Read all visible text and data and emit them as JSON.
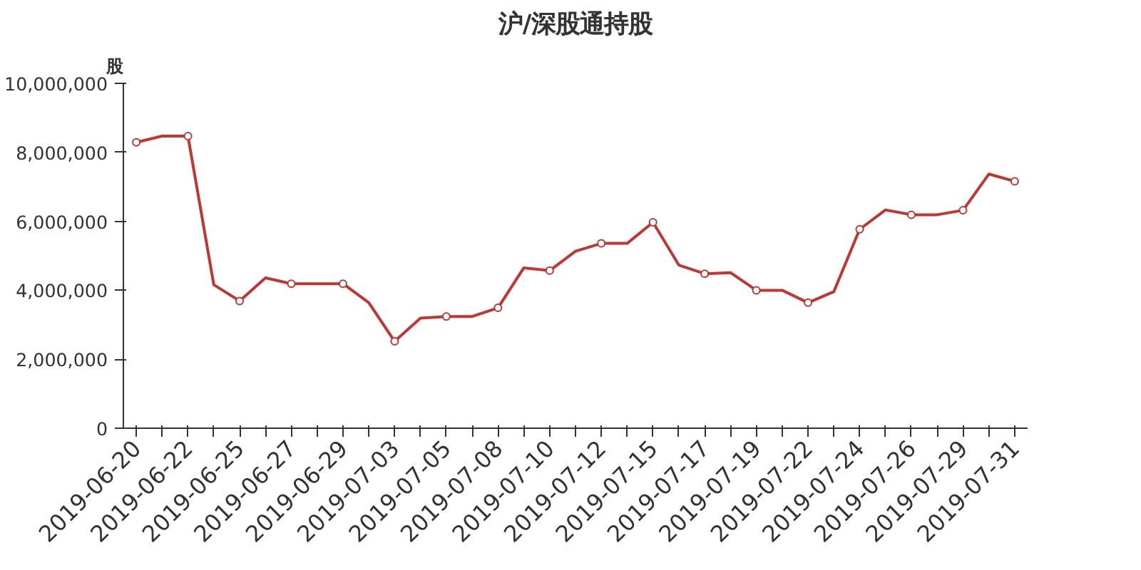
{
  "chart_data": {
    "type": "line",
    "title": "沪/深股通持股",
    "ylabel": "股",
    "categories": [
      "2019-06-20",
      null,
      "2019-06-22",
      null,
      "2019-06-25",
      null,
      "2019-06-27",
      null,
      "2019-06-29",
      null,
      "2019-07-03",
      null,
      "2019-07-05",
      null,
      "2019-07-08",
      null,
      "2019-07-10",
      null,
      "2019-07-12",
      null,
      "2019-07-15",
      null,
      "2019-07-17",
      null,
      "2019-07-19",
      null,
      "2019-07-22",
      null,
      "2019-07-24",
      null,
      "2019-07-26",
      null,
      "2019-07-29",
      null,
      "2019-07-31"
    ],
    "series": [
      {
        "color": "#c23531",
        "values": [
          8290000,
          8470000,
          8470000,
          4160000,
          3690000,
          4360000,
          4190000,
          4190000,
          4190000,
          3640000,
          2520000,
          3190000,
          3240000,
          3240000,
          3490000,
          4650000,
          4570000,
          5130000,
          5360000,
          5360000,
          5970000,
          4730000,
          4480000,
          4510000,
          4000000,
          4000000,
          3640000,
          3960000,
          5770000,
          6330000,
          6190000,
          6190000,
          6320000,
          7370000,
          7160000
        ]
      }
    ],
    "ylim": [
      0,
      10000000
    ],
    "yticks": [
      {
        "value": 0,
        "label": "0"
      },
      {
        "value": 2000000,
        "label": "2,000,000"
      },
      {
        "value": 4000000,
        "label": "4,000,000"
      },
      {
        "value": 6000000,
        "label": "6,000,000"
      },
      {
        "value": 8000000,
        "label": "8,000,000"
      },
      {
        "value": 10000000,
        "label": "10,000,000"
      }
    ],
    "grid": false,
    "marker": "circle",
    "line_style": "solid"
  }
}
